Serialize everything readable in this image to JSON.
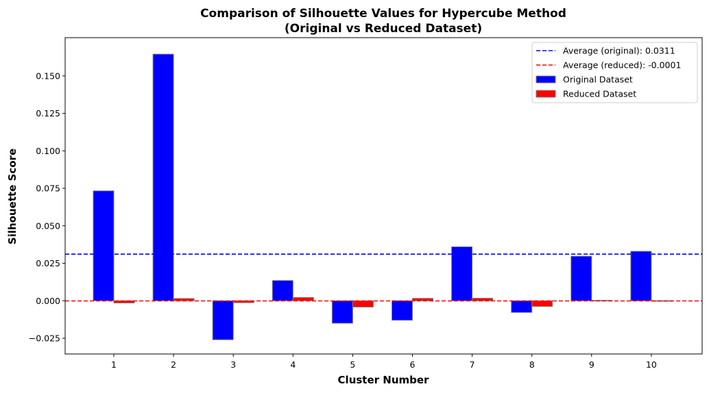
{
  "chart_data": {
    "type": "bar",
    "title_line1": "Comparison of Silhouette Values for Hypercube Method",
    "title_line2": "(Original vs Reduced Dataset)",
    "xlabel": "Cluster Number",
    "ylabel": "Silhouette Score",
    "categories": [
      "1",
      "2",
      "3",
      "4",
      "5",
      "6",
      "7",
      "8",
      "9",
      "10"
    ],
    "series": [
      {
        "name": "Original Dataset",
        "color": "#0000ff",
        "values": [
          0.0733,
          0.1645,
          -0.026,
          0.0135,
          -0.015,
          -0.013,
          0.036,
          -0.0078,
          0.0297,
          0.033
        ]
      },
      {
        "name": "Reduced Dataset",
        "color": "#ff0000",
        "values": [
          -0.0015,
          0.0015,
          -0.0013,
          0.0022,
          -0.0042,
          0.0016,
          0.0017,
          -0.0038,
          0.0003,
          0.0001
        ]
      }
    ],
    "reference_lines": [
      {
        "label": "Average (original): 0.0311",
        "value": 0.0311,
        "color": "#0000ff",
        "style": "dashed"
      },
      {
        "label": "Average (reduced): -0.0001",
        "value": -0.0001,
        "color": "#ff0000",
        "style": "dashed"
      }
    ],
    "yticks": [
      -0.025,
      0.0,
      0.025,
      0.05,
      0.075,
      0.1,
      0.125,
      0.15
    ],
    "ytick_labels": [
      "−0.025",
      "0.000",
      "0.025",
      "0.050",
      "0.075",
      "0.100",
      "0.125",
      "0.150"
    ],
    "ylim": [
      -0.0355,
      0.1755
    ],
    "grid": false,
    "legend_position": "top-right",
    "bar_edge_color": "#808080"
  }
}
